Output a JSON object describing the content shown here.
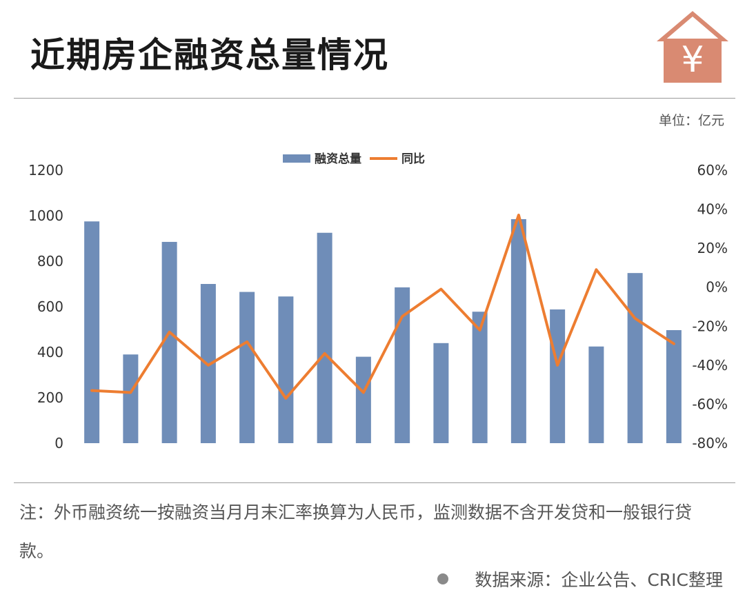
{
  "header": {
    "title": "近期房企融资总量情况",
    "icon": "house-yen-icon",
    "icon_symbol": "¥",
    "icon_color": "#d98a72"
  },
  "unit_label": "单位：亿元",
  "chart_data": {
    "type": "bar",
    "title": "",
    "categories": [
      "",
      "",
      "",
      "",
      "",
      "",
      "",
      "",
      "",
      "",
      "",
      "",
      "",
      "",
      "",
      ""
    ],
    "series": [
      {
        "name": "融资总量",
        "type": "bar",
        "axis": "left",
        "color": "#6f8db8",
        "values": [
          975,
          390,
          885,
          700,
          665,
          645,
          925,
          380,
          685,
          440,
          578,
          985,
          588,
          425,
          748,
          497
        ]
      },
      {
        "name": "同比",
        "type": "line",
        "axis": "right",
        "color": "#ed7d31",
        "values": [
          -53,
          -54,
          -23,
          -40,
          -28,
          -57,
          -34,
          -54,
          -15,
          -1,
          -22,
          37,
          -40,
          9,
          -16,
          -29
        ]
      }
    ],
    "y_left": {
      "min": 0,
      "max": 1200,
      "ticks": [
        0,
        200,
        400,
        600,
        800,
        1000,
        1200
      ]
    },
    "y_right": {
      "min": -80,
      "max": 60,
      "ticks": [
        -80,
        -60,
        -40,
        -20,
        0,
        20,
        40,
        60
      ],
      "tick_labels": [
        "-80%",
        "-60%",
        "-40%",
        "-20%",
        "0%",
        "20%",
        "40%",
        "60%"
      ]
    },
    "legend_position": "top-center",
    "grid": false
  },
  "footer": {
    "note": "注：外币融资统一按融资当月月末汇率换算为人民币，监测数据不含开发贷和一般银行贷款。",
    "source": "数据来源：企业公告、CRIC整理"
  }
}
